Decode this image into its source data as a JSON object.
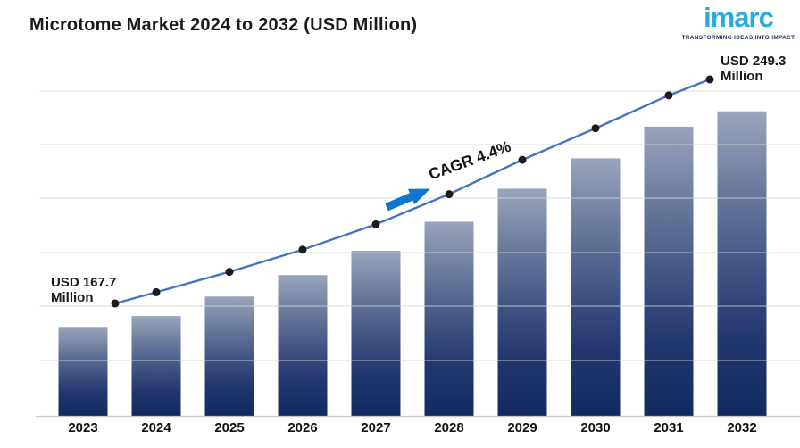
{
  "header": {
    "title": "Microtome Market 2024 to 2032 (USD Million)",
    "logo": {
      "text": "imarc",
      "tagline": "TRANSFORMING IDEAS INTO IMPACT",
      "word_color": "#29abe2",
      "tagline_color": "#1e2d5c"
    }
  },
  "annotations": {
    "start": {
      "line1": "USD 167.7",
      "line2": "Million"
    },
    "end": {
      "line1": "USD 249.3",
      "line2": "Million"
    },
    "cagr": "CAGR 4.4%"
  },
  "chart_data": {
    "type": "bar",
    "overlay": "line",
    "title": "Microtome Market 2024 to 2032 (USD Million)",
    "unit": "USD Million",
    "categories": [
      "2023",
      "2024",
      "2025",
      "2026",
      "2027",
      "2028",
      "2029",
      "2030",
      "2031",
      "2032"
    ],
    "values": [
      167.7,
      171.8,
      179.2,
      187.3,
      196.5,
      207.5,
      220.0,
      231.5,
      243.5,
      249.3
    ],
    "first_value_label": "USD 167.7 Million",
    "last_value_label": "USD 249.3 Million",
    "cagr": "4.4%",
    "cagr_period": "2024 to 2032",
    "xlabel": "",
    "ylabel": "",
    "bar_axis_min": 134,
    "grid": true,
    "legend": false,
    "colors": {
      "bar_gradient": [
        "#9aa5bc",
        "#6d7b9d",
        "#445685",
        "#22366e",
        "#122a5f"
      ],
      "line": "#4472c4",
      "marker": "#1b1b1b",
      "arrow": "#0e76cc",
      "gridline": "#d6d6d6",
      "axis_line": "#c7c7c7",
      "title_color": "#1a1a1a"
    }
  }
}
